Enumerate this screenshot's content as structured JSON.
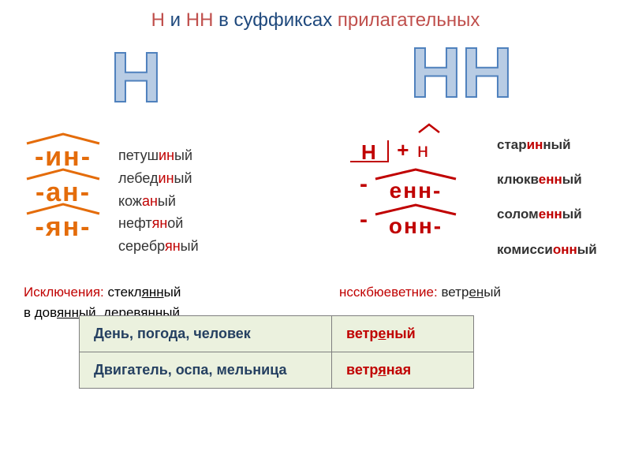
{
  "title": {
    "part1": "Н",
    "part2": " и ",
    "part3": "НН",
    "part4": " в суффиксах ",
    "part5": "прилагательных"
  },
  "left": {
    "big": "Н",
    "suffixes": [
      {
        "text": "-ин-",
        "roof_color": "#e46c0a",
        "text_color": "#e46c0a"
      },
      {
        "text": "-ан-",
        "roof_color": "#e46c0a",
        "text_color": "#e46c0a"
      },
      {
        "text": "-ян-",
        "roof_color": "#e46c0a",
        "text_color": "#e46c0a"
      }
    ],
    "examples": [
      {
        "pre": "петуш",
        "suf": "ин",
        "post": "ый"
      },
      {
        "pre": "лебед",
        "suf": "ин",
        "post": "ый"
      },
      {
        "pre": "кож",
        "suf": "ан",
        "post": "ый"
      },
      {
        "pre": "нефт",
        "suf": "ян",
        "post": "ой"
      },
      {
        "pre": "серебр",
        "suf": "ян",
        "post": "ый"
      }
    ],
    "exception_label": "Исключения:",
    "exception_line1a": " стекл",
    "exception_line1b": "янн",
    "exception_line1c": "ый",
    "exception_line2a": "в дов",
    "exception_line2b": "янн",
    "exception_line2c": "ый, дерев",
    "exception_line2d": "янн",
    "exception_line2e": "ый"
  },
  "right": {
    "big": "НН",
    "base_n": "Н",
    "suffix_n": "н",
    "suffixes": [
      {
        "text": "енн-",
        "roof_color": "#c00000",
        "text_color": "#c00000"
      },
      {
        "text": "онн-",
        "roof_color": "#c00000",
        "text_color": "#c00000"
      }
    ],
    "examples": [
      {
        "pre": "стар",
        "suf": "ин",
        "mid": "н",
        "post": "ый"
      },
      {
        "pre": "клюкв",
        "suf": "енн",
        "mid": "",
        "post": "ый"
      },
      {
        "pre": "солом",
        "suf": "енн",
        "mid": "",
        "post": "ый"
      },
      {
        "pre": "комисси",
        "suf": "онн",
        "mid": "",
        "post": "ый"
      }
    ],
    "exception_pre": "нсскбюеветние: ",
    "exception_word_a": "ветр",
    "exception_word_b": "ен",
    "exception_word_c": "ый"
  },
  "table": {
    "rows": [
      {
        "left": "День, погода, человек",
        "right_pre": "ветр",
        "right_u": "е",
        "right_post": "ный",
        "color": "#c00000"
      },
      {
        "left": "Двигатель, оспа, мельница",
        "right_pre": "ветр",
        "right_u": "я",
        "right_post": "ная",
        "color": "#c00000"
      }
    ]
  },
  "colors": {
    "title_red": "#c0504d",
    "title_blue": "#1f497d",
    "orange": "#e46c0a",
    "darkred": "#c00000",
    "table_bg": "#ebf1de",
    "big_fill": "#b8cce4",
    "big_stroke": "#4f81bd"
  }
}
